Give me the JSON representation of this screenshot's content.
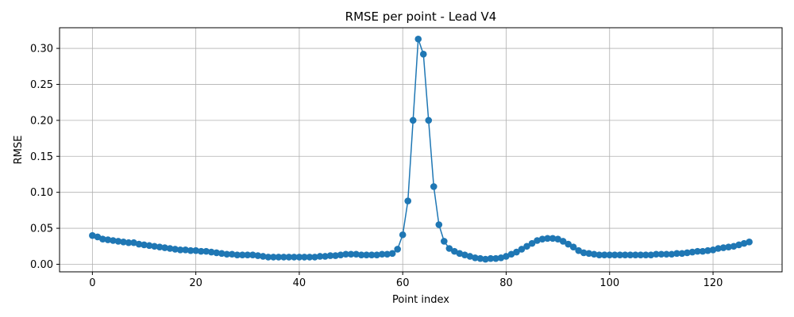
{
  "chart_data": {
    "type": "line",
    "title": "RMSE per point - Lead V4",
    "xlabel": "Point index",
    "ylabel": "RMSE",
    "xlim": [
      -6.35,
      133.35
    ],
    "ylim": [
      -0.0105,
      0.3287
    ],
    "xticks": [
      0,
      20,
      40,
      60,
      80,
      100,
      120
    ],
    "yticks": [
      0.0,
      0.05,
      0.1,
      0.15,
      0.2,
      0.25,
      0.3
    ],
    "ytick_labels": [
      "0.00",
      "0.05",
      "0.10",
      "0.15",
      "0.20",
      "0.25",
      "0.30"
    ],
    "grid": true,
    "marker": "circle",
    "color": "#1f77b4",
    "x": [
      0,
      1,
      2,
      3,
      4,
      5,
      6,
      7,
      8,
      9,
      10,
      11,
      12,
      13,
      14,
      15,
      16,
      17,
      18,
      19,
      20,
      21,
      22,
      23,
      24,
      25,
      26,
      27,
      28,
      29,
      30,
      31,
      32,
      33,
      34,
      35,
      36,
      37,
      38,
      39,
      40,
      41,
      42,
      43,
      44,
      45,
      46,
      47,
      48,
      49,
      50,
      51,
      52,
      53,
      54,
      55,
      56,
      57,
      58,
      59,
      60,
      61,
      62,
      63,
      64,
      65,
      66,
      67,
      68,
      69,
      70,
      71,
      72,
      73,
      74,
      75,
      76,
      77,
      78,
      79,
      80,
      81,
      82,
      83,
      84,
      85,
      86,
      87,
      88,
      89,
      90,
      91,
      92,
      93,
      94,
      95,
      96,
      97,
      98,
      99,
      100,
      101,
      102,
      103,
      104,
      105,
      106,
      107,
      108,
      109,
      110,
      111,
      112,
      113,
      114,
      115,
      116,
      117,
      118,
      119,
      120,
      121,
      122,
      123,
      124,
      125,
      126,
      127
    ],
    "values": [
      0.04,
      0.038,
      0.035,
      0.034,
      0.033,
      0.032,
      0.031,
      0.03,
      0.03,
      0.028,
      0.027,
      0.026,
      0.025,
      0.024,
      0.023,
      0.022,
      0.021,
      0.02,
      0.02,
      0.019,
      0.019,
      0.018,
      0.018,
      0.017,
      0.016,
      0.015,
      0.014,
      0.014,
      0.013,
      0.013,
      0.013,
      0.013,
      0.012,
      0.011,
      0.01,
      0.01,
      0.01,
      0.01,
      0.01,
      0.01,
      0.01,
      0.01,
      0.01,
      0.01,
      0.011,
      0.011,
      0.012,
      0.012,
      0.013,
      0.014,
      0.014,
      0.014,
      0.013,
      0.013,
      0.013,
      0.013,
      0.014,
      0.014,
      0.015,
      0.021,
      0.041,
      0.088,
      0.2,
      0.313,
      0.292,
      0.2,
      0.108,
      0.055,
      0.032,
      0.022,
      0.018,
      0.015,
      0.013,
      0.011,
      0.009,
      0.008,
      0.007,
      0.008,
      0.008,
      0.009,
      0.011,
      0.014,
      0.017,
      0.021,
      0.025,
      0.029,
      0.033,
      0.035,
      0.036,
      0.036,
      0.035,
      0.032,
      0.028,
      0.024,
      0.019,
      0.016,
      0.015,
      0.014,
      0.013,
      0.013,
      0.013,
      0.013,
      0.013,
      0.013,
      0.013,
      0.013,
      0.013,
      0.013,
      0.013,
      0.014,
      0.014,
      0.014,
      0.014,
      0.015,
      0.015,
      0.016,
      0.017,
      0.018,
      0.018,
      0.019,
      0.02,
      0.022,
      0.023,
      0.024,
      0.025,
      0.027,
      0.029,
      0.031
    ]
  }
}
